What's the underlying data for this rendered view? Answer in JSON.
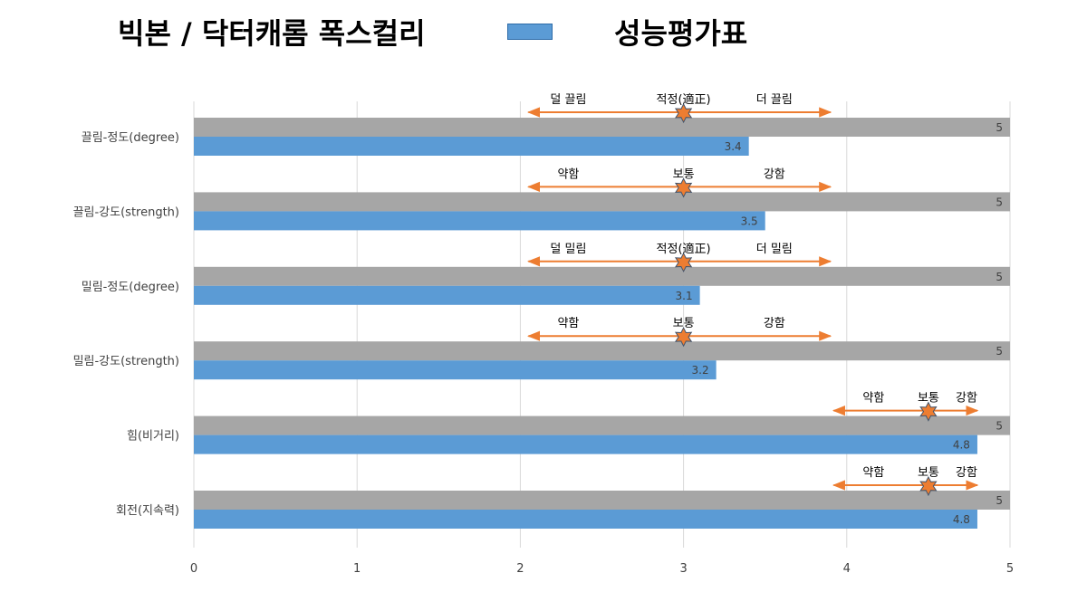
{
  "header": {
    "title_left": "빅본 / 닥터캐롬 폭스컬리",
    "title_right": "성능평가표"
  },
  "colors": {
    "max_bar": "#a6a6a6",
    "score_bar": "#5b9bd5",
    "arrow": "#ed7d31",
    "marker_fill": "#ed7d31",
    "marker_stroke": "#44546a",
    "gridline": "#d9d9d9",
    "legend_swatch": "#5b9bd5"
  },
  "chart_data": {
    "type": "bar",
    "orientation": "horizontal",
    "categories": [
      "끌림-정도(degree)",
      "끌림-강도(strength)",
      "밀림-정도(degree)",
      "밀림-강도(strength)",
      "힘(비거리)",
      "회전(지속력)"
    ],
    "series": [
      {
        "values": [
          5,
          5,
          5,
          5,
          5,
          5
        ]
      },
      {
        "values": [
          3.4,
          3.5,
          3.1,
          3.2,
          4.8,
          4.8
        ]
      }
    ],
    "xlim": [
      0,
      5
    ],
    "x_ticks": [
      "0",
      "1",
      "2",
      "3",
      "4",
      "5"
    ],
    "grid": "vertical",
    "annotations": [
      {
        "low": "덜 끌림",
        "mid": "적정(適正)",
        "high": "더 끌림",
        "arrow_from": 2.05,
        "arrow_to": 3.9,
        "marker": 3.0
      },
      {
        "low": "약함",
        "mid": "보통",
        "high": "강함",
        "arrow_from": 2.05,
        "arrow_to": 3.9,
        "marker": 3.0
      },
      {
        "low": "덜 밀림",
        "mid": "적정(適正)",
        "high": "더 밀림",
        "arrow_from": 2.05,
        "arrow_to": 3.9,
        "marker": 3.0
      },
      {
        "low": "약함",
        "mid": "보통",
        "high": "강함",
        "arrow_from": 2.05,
        "arrow_to": 3.9,
        "marker": 3.0
      },
      {
        "low": "약함",
        "mid": "보통",
        "high": "강함",
        "arrow_from": 3.92,
        "arrow_to": 4.8,
        "marker": 4.5
      },
      {
        "low": "약함",
        "mid": "보통",
        "high": "강함",
        "arrow_from": 3.92,
        "arrow_to": 4.8,
        "marker": 4.5
      }
    ]
  }
}
